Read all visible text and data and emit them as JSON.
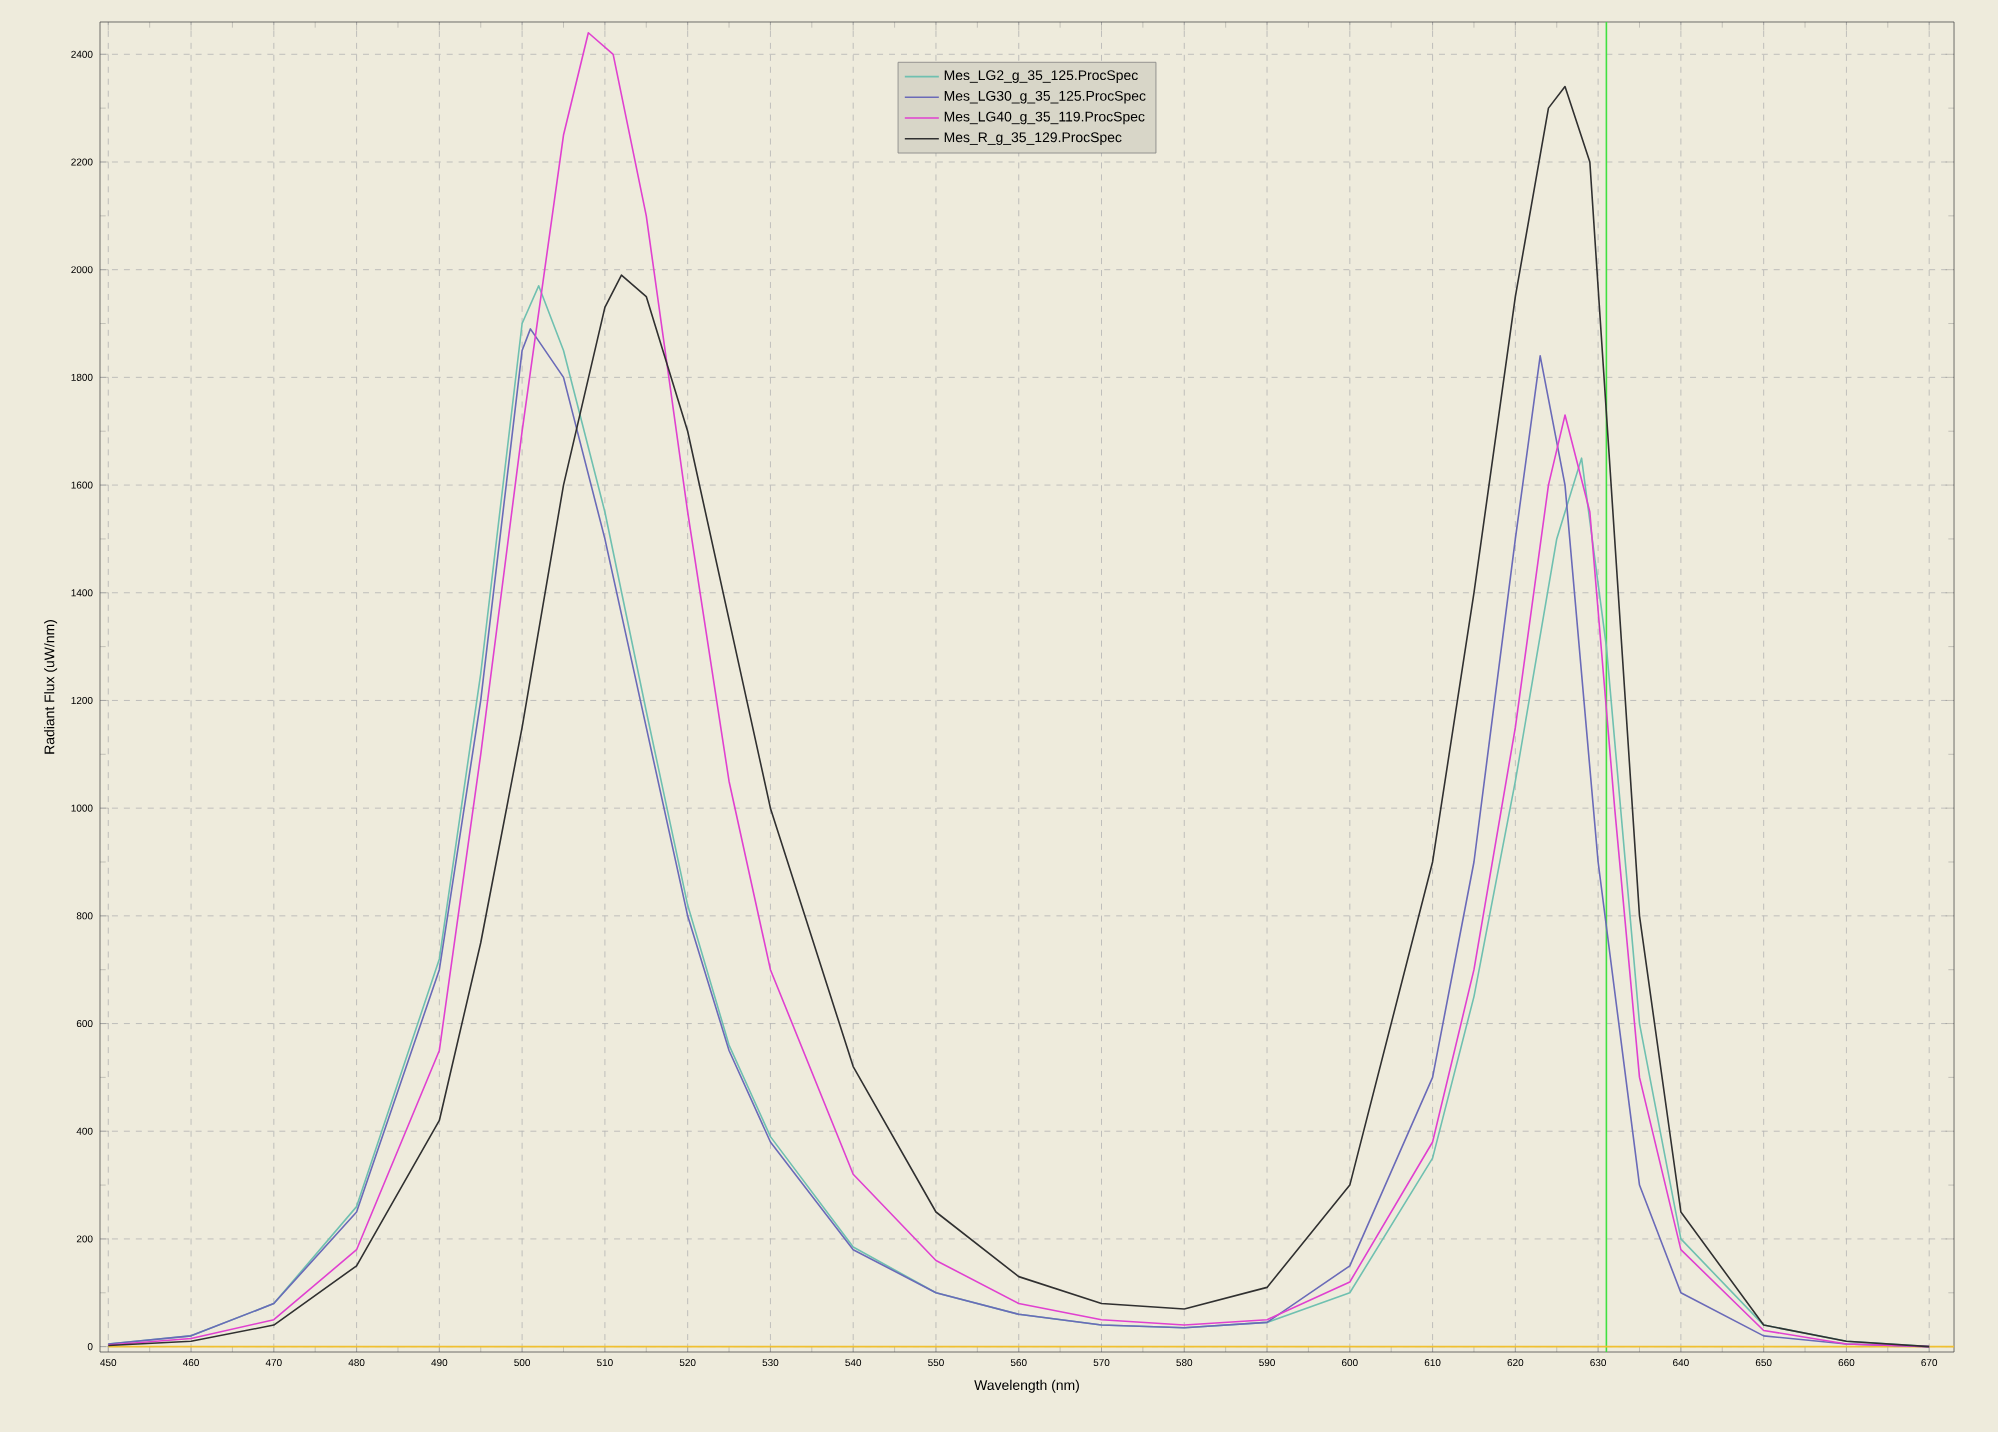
{
  "chart_data": {
    "type": "line",
    "xlabel": "Wavelength (nm)",
    "ylabel": "Radiant Flux (uW/nm)",
    "xlim": [
      449,
      673
    ],
    "ylim": [
      -10,
      2460
    ],
    "xticks": [
      450,
      460,
      470,
      480,
      490,
      500,
      510,
      520,
      530,
      540,
      550,
      560,
      570,
      580,
      590,
      600,
      610,
      620,
      630,
      640,
      650,
      660,
      670
    ],
    "yticks": [
      0,
      200,
      400,
      600,
      800,
      1000,
      1200,
      1400,
      1600,
      1800,
      2000,
      2200,
      2400
    ],
    "grid": true,
    "legend": "top",
    "marker": "none",
    "line_style": "solid",
    "ref_lines": [
      {
        "axis": "x",
        "value": 631,
        "color": "#40e040"
      }
    ],
    "series": [
      {
        "color": "#f0c030",
        "x": [
          450,
          673
        ],
        "values": [
          0,
          0
        ]
      },
      {
        "name": "Mes_LG2_g_35_125.ProcSpec",
        "color": "#6fc0b0",
        "x": [
          450,
          460,
          470,
          480,
          490,
          495,
          500,
          502,
          505,
          510,
          515,
          520,
          525,
          530,
          540,
          550,
          560,
          570,
          580,
          590,
          600,
          610,
          615,
          620,
          625,
          628,
          631,
          635,
          640,
          650,
          660,
          670
        ],
        "values": [
          5,
          20,
          80,
          260,
          720,
          1250,
          1900,
          1970,
          1850,
          1550,
          1180,
          820,
          560,
          390,
          185,
          100,
          60,
          40,
          35,
          45,
          100,
          350,
          650,
          1050,
          1500,
          1650,
          1300,
          600,
          200,
          40,
          10,
          0
        ]
      },
      {
        "name": "Mes_LG30_g_35_125.ProcSpec",
        "color": "#6a6ab8",
        "x": [
          450,
          460,
          470,
          480,
          490,
          495,
          500,
          501,
          505,
          510,
          515,
          520,
          525,
          530,
          540,
          550,
          560,
          570,
          580,
          590,
          600,
          610,
          615,
          620,
          623,
          626,
          630,
          635,
          640,
          650,
          660,
          670
        ],
        "values": [
          5,
          20,
          80,
          250,
          700,
          1200,
          1850,
          1890,
          1800,
          1500,
          1150,
          800,
          550,
          380,
          180,
          100,
          60,
          40,
          35,
          45,
          150,
          500,
          900,
          1500,
          1840,
          1600,
          900,
          300,
          100,
          20,
          5,
          0
        ]
      },
      {
        "name": "Mes_LG40_g_35_119.ProcSpec",
        "color": "#e040d0",
        "x": [
          450,
          460,
          470,
          480,
          490,
          495,
          500,
          505,
          508,
          511,
          515,
          520,
          525,
          530,
          540,
          550,
          560,
          570,
          580,
          590,
          600,
          610,
          615,
          620,
          624,
          626,
          629,
          632,
          635,
          640,
          650,
          660,
          670
        ],
        "values": [
          3,
          15,
          50,
          180,
          550,
          1100,
          1700,
          2250,
          2440,
          2400,
          2100,
          1550,
          1050,
          700,
          320,
          160,
          80,
          50,
          40,
          50,
          120,
          380,
          700,
          1150,
          1600,
          1730,
          1550,
          1000,
          500,
          180,
          30,
          5,
          0
        ]
      },
      {
        "name": "Mes_R_g_35_129.ProcSpec",
        "color": "#303030",
        "x": [
          450,
          460,
          470,
          480,
          490,
          495,
          500,
          505,
          510,
          512,
          515,
          520,
          525,
          530,
          540,
          550,
          560,
          570,
          580,
          590,
          600,
          610,
          615,
          620,
          624,
          626,
          629,
          632,
          635,
          640,
          650,
          660,
          670
        ],
        "values": [
          2,
          10,
          40,
          150,
          420,
          750,
          1150,
          1600,
          1930,
          1990,
          1950,
          1700,
          1350,
          1000,
          520,
          250,
          130,
          80,
          70,
          110,
          300,
          900,
          1400,
          1950,
          2300,
          2340,
          2200,
          1500,
          800,
          250,
          40,
          10,
          0
        ]
      }
    ]
  }
}
